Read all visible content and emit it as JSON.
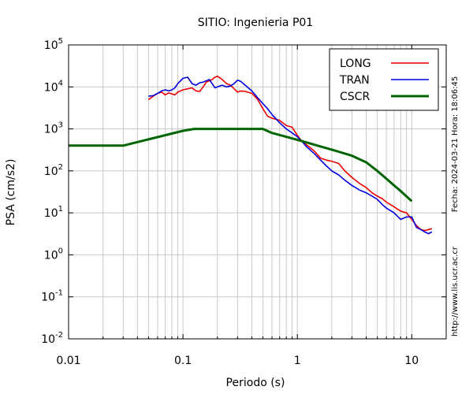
{
  "chart_data": {
    "type": "line",
    "title": "SITIO: Ingenieria P01",
    "xlabel": "Periodo (s)",
    "ylabel": "PSA (cm/s2)",
    "x_scale": "log",
    "y_scale": "log",
    "xlim": [
      0.01,
      20
    ],
    "ylim": [
      0.01,
      100000
    ],
    "grid": true,
    "legend_position": "top-right",
    "x_ticks": [
      {
        "value": 0.01,
        "label": "0.01"
      },
      {
        "value": 0.1,
        "label": "0.1"
      },
      {
        "value": 1,
        "label": "1"
      },
      {
        "value": 10,
        "label": "10"
      }
    ],
    "y_ticks": [
      {
        "value": 0.01,
        "base": "10",
        "exp": "-2"
      },
      {
        "value": 0.1,
        "base": "10",
        "exp": "-1"
      },
      {
        "value": 1,
        "base": "10",
        "exp": "0"
      },
      {
        "value": 10,
        "base": "10",
        "exp": "1"
      },
      {
        "value": 100,
        "base": "10",
        "exp": "2"
      },
      {
        "value": 1000,
        "base": "10",
        "exp": "3"
      },
      {
        "value": 10000,
        "base": "10",
        "exp": "4"
      },
      {
        "value": 100000,
        "base": "10",
        "exp": "5"
      }
    ],
    "side_texts": {
      "date": "Fecha: 2024-03-21 Hora: 18:06:45",
      "url": "http://www.lis.ucr.ac.cr"
    },
    "series": [
      {
        "name": "LONG",
        "color": "#ee0000",
        "x": [
          0.05,
          0.055,
          0.06,
          0.065,
          0.07,
          0.075,
          0.08,
          0.085,
          0.09,
          0.1,
          0.11,
          0.12,
          0.13,
          0.14,
          0.15,
          0.16,
          0.17,
          0.18,
          0.19,
          0.2,
          0.22,
          0.24,
          0.26,
          0.28,
          0.3,
          0.32,
          0.35,
          0.4,
          0.45,
          0.5,
          0.55,
          0.6,
          0.7,
          0.8,
          0.9,
          1.0,
          1.1,
          1.2,
          1.4,
          1.6,
          1.8,
          2.0,
          2.3,
          2.6,
          3.0,
          3.5,
          4.0,
          4.5,
          5.0,
          5.5,
          6.0,
          7.0,
          8.0,
          9.0,
          10,
          11,
          12,
          13,
          14,
          15
        ],
        "y": [
          5000,
          6000,
          7000,
          7500,
          6500,
          7200,
          6800,
          6500,
          7500,
          8500,
          9000,
          9500,
          8000,
          7800,
          10000,
          13000,
          14000,
          15000,
          17000,
          18000,
          15000,
          12000,
          11000,
          9000,
          7500,
          8000,
          7800,
          7000,
          5000,
          3000,
          2000,
          1800,
          1600,
          1200,
          1100,
          700,
          500,
          420,
          300,
          200,
          180,
          170,
          150,
          100,
          70,
          50,
          40,
          30,
          25,
          22,
          18,
          14,
          11,
          10,
          7,
          5,
          4,
          3.8,
          4,
          4.2
        ]
      },
      {
        "name": "TRAN",
        "color": "#0000dd",
        "x": [
          0.05,
          0.055,
          0.06,
          0.065,
          0.07,
          0.075,
          0.08,
          0.085,
          0.09,
          0.1,
          0.11,
          0.12,
          0.13,
          0.14,
          0.15,
          0.16,
          0.17,
          0.18,
          0.19,
          0.2,
          0.22,
          0.24,
          0.26,
          0.28,
          0.3,
          0.32,
          0.35,
          0.4,
          0.45,
          0.5,
          0.55,
          0.6,
          0.7,
          0.8,
          0.9,
          1.0,
          1.1,
          1.2,
          1.4,
          1.6,
          1.8,
          2.0,
          2.3,
          2.6,
          3.0,
          3.5,
          4.0,
          4.5,
          5.0,
          5.5,
          6.0,
          7.0,
          8.0,
          9.0,
          10,
          11,
          12,
          13,
          14,
          15
        ],
        "y": [
          6000,
          6200,
          7000,
          8000,
          8500,
          8000,
          8500,
          9500,
          12000,
          16000,
          17000,
          12000,
          11000,
          12500,
          13000,
          14000,
          15000,
          12000,
          9500,
          10000,
          11000,
          10000,
          10500,
          12000,
          14500,
          13500,
          11000,
          8000,
          5500,
          4000,
          3000,
          2200,
          1400,
          1000,
          800,
          650,
          500,
          380,
          260,
          180,
          130,
          100,
          80,
          60,
          45,
          35,
          30,
          25,
          21,
          16,
          13,
          10,
          7,
          8,
          8,
          4.5,
          4,
          3.5,
          3.2,
          3.5
        ]
      },
      {
        "name": "CSCR",
        "color": "#006400",
        "x": [
          0.01,
          0.03,
          0.1,
          0.125,
          0.5,
          0.6,
          1.0,
          1.5,
          2.0,
          3.0,
          4.0,
          5.0,
          6.0,
          7.0,
          8.0,
          10.0
        ],
        "y": [
          400,
          400,
          900,
          1000,
          1000,
          800,
          550,
          400,
          320,
          230,
          160,
          100,
          65,
          45,
          33,
          19
        ]
      }
    ]
  }
}
